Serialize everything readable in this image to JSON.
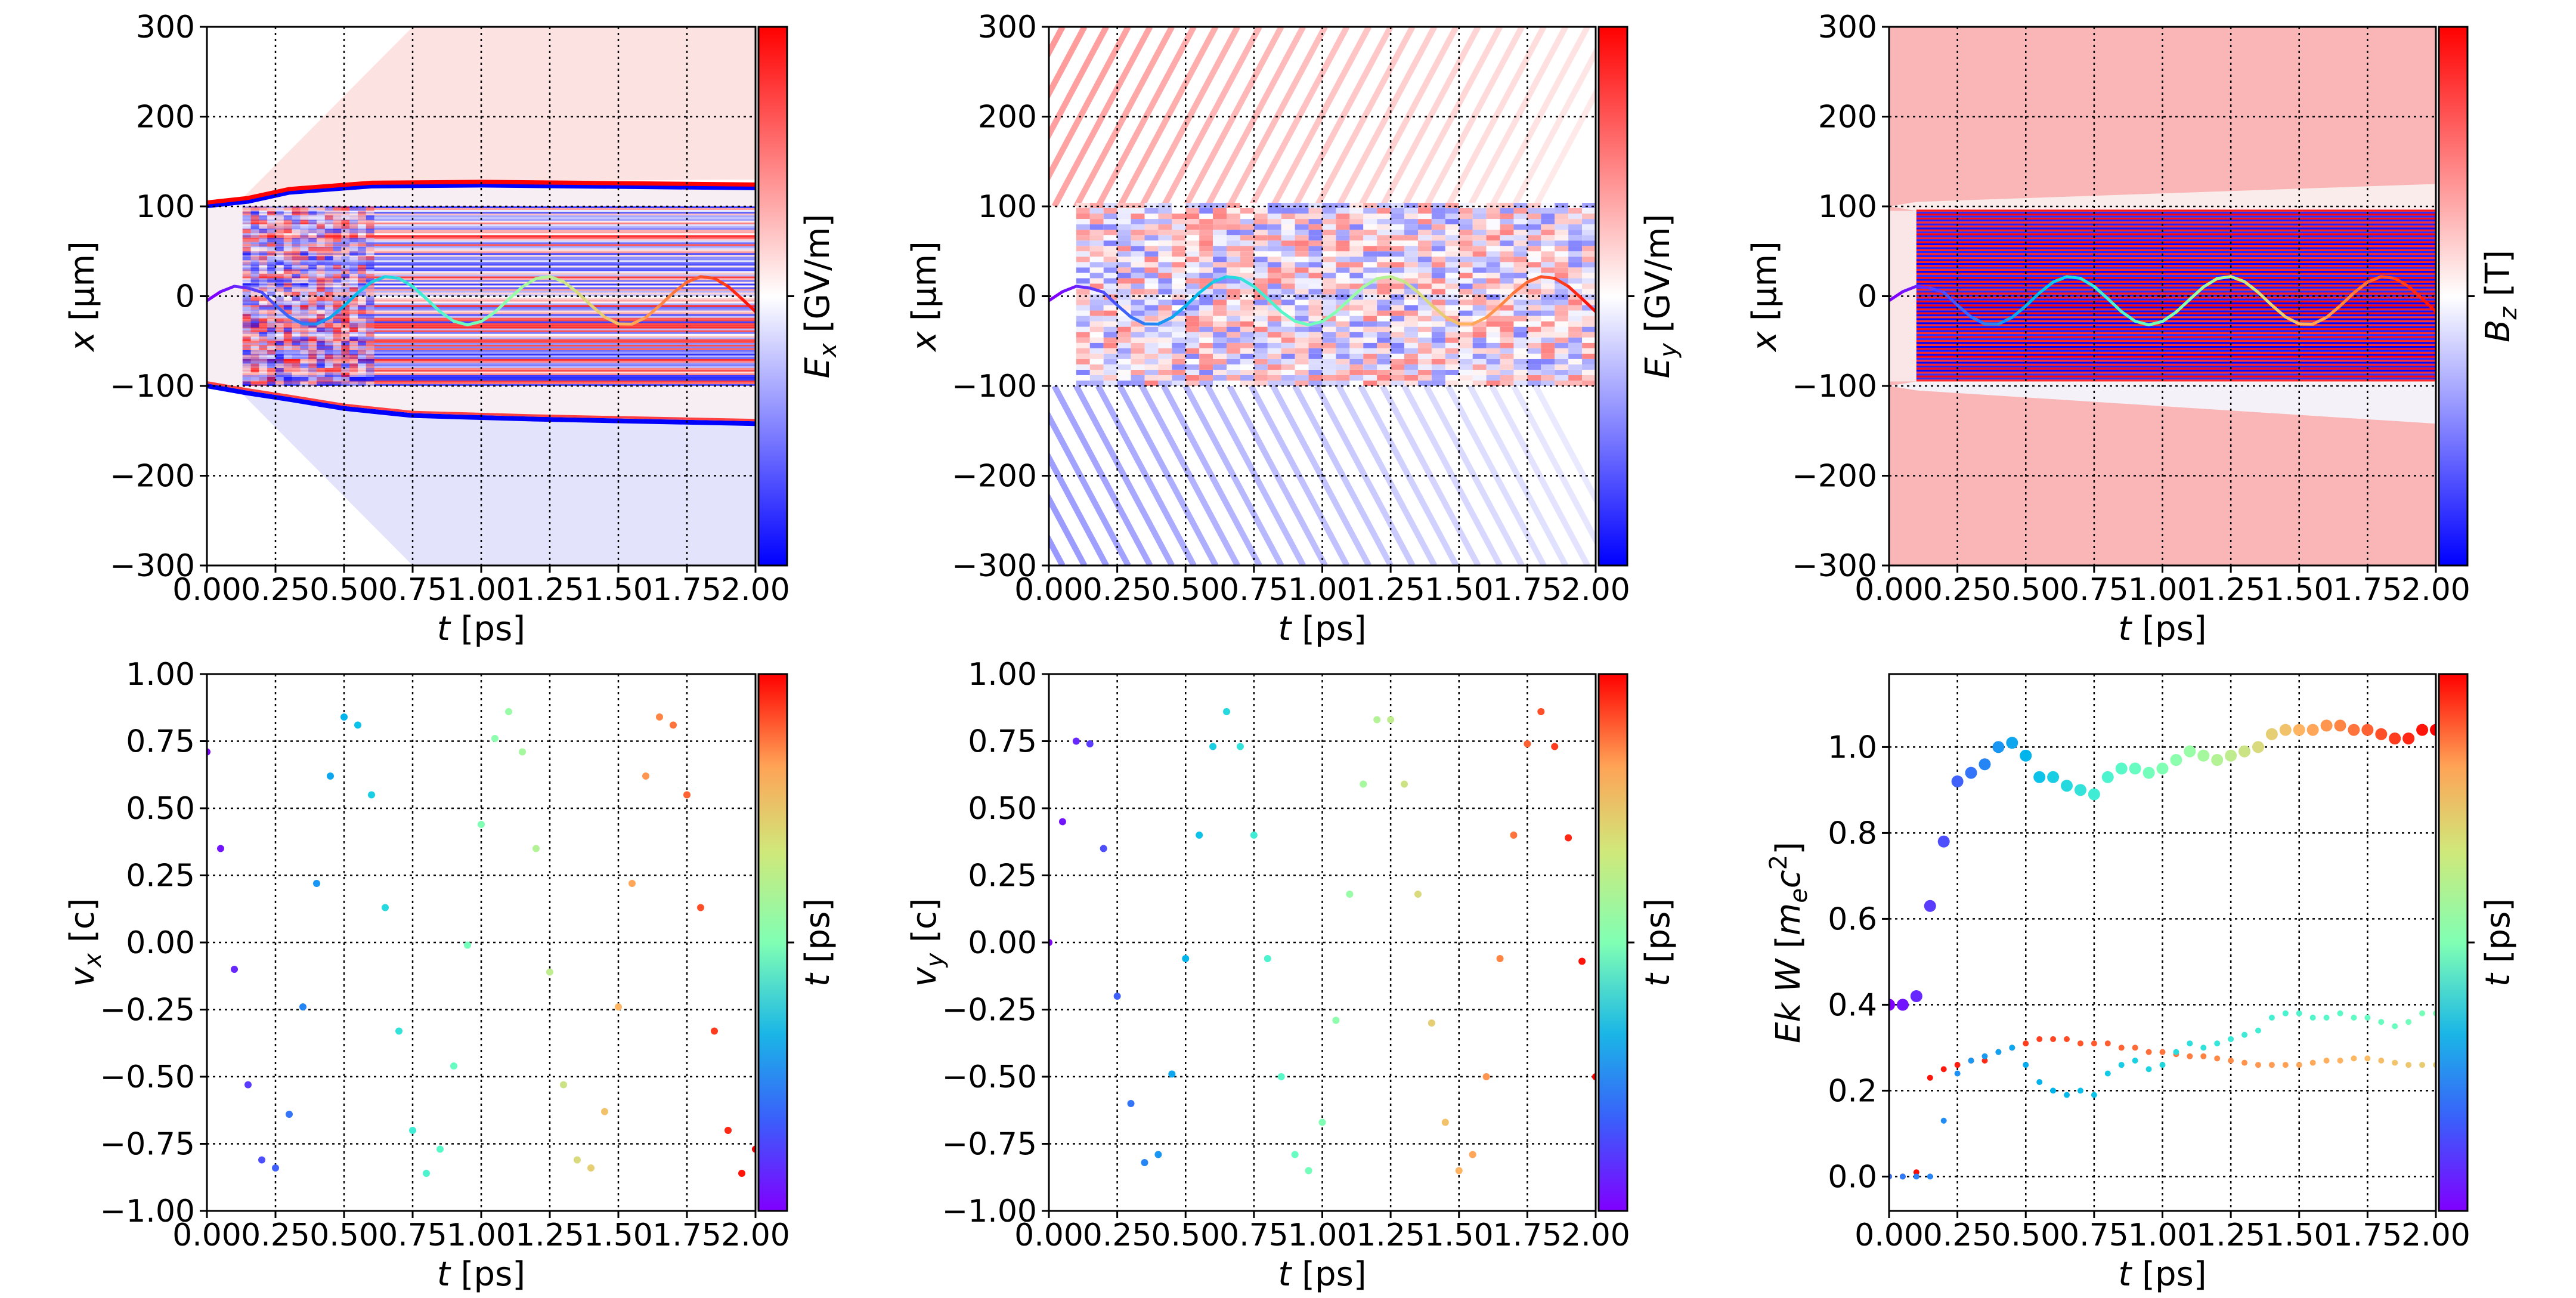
{
  "chart_data": [
    {
      "type": "heatmap",
      "xlabel": {
        "var": "t",
        "unit": "[ps]"
      },
      "ylabel": {
        "var": "x",
        "unit": "[μm]"
      },
      "xlim": [
        0,
        2
      ],
      "ylim": [
        -300,
        300
      ],
      "xticks": [
        0,
        0.25,
        0.5,
        0.75,
        1,
        1.25,
        1.5,
        1.75,
        2
      ],
      "xtick_labels": [
        "0.00",
        "0.25",
        "0.50",
        "0.75",
        "1.00",
        "1.25",
        "1.50",
        "1.75",
        "2.00"
      ],
      "yticks": [
        300,
        200,
        100,
        0,
        -100,
        -200,
        -300
      ],
      "ytick_labels": [
        "300",
        "200",
        "100",
        "0",
        "−100",
        "−200",
        "−300"
      ],
      "grid": true,
      "colorbar": {
        "base": "E",
        "sub": "x",
        "unit": "[GV/m]",
        "colormap": "bwr",
        "low": "#0000ff",
        "mid": "#ffffff",
        "high": "#ff0000"
      },
      "trajectory": {
        "colormap": "rainbow",
        "t": [
          0,
          0.05,
          0.1,
          0.15,
          0.2,
          0.25,
          0.3,
          0.35,
          0.4,
          0.45,
          0.5,
          0.55,
          0.6,
          0.65,
          0.7,
          0.75,
          0.8,
          0.85,
          0.9,
          0.95,
          1,
          1.05,
          1.1,
          1.15,
          1.2,
          1.25,
          1.3,
          1.35,
          1.4,
          1.45,
          1.5,
          1.55,
          1.6,
          1.65,
          1.7,
          1.75,
          1.8,
          1.85,
          1.9,
          1.95,
          2
        ],
        "x": [
          -5,
          5,
          11,
          9,
          4.4,
          -10.1,
          -23.2,
          -30.9,
          -31.1,
          -23.7,
          -10.9,
          3.7,
          15.7,
          21.7,
          19.9,
          10.9,
          -2.8,
          -17.2,
          -27.9,
          -32,
          -28.2,
          -17.7,
          -3.5,
          10.3,
          19.6,
          21.8,
          16.2,
          4.4,
          -10.1,
          -23.2,
          -30.9,
          -31.1,
          -23.7,
          -10.8,
          3.7,
          15.7,
          21.7,
          19.9,
          10.9,
          -2.8,
          -17.2
        ]
      }
    },
    {
      "type": "heatmap",
      "xlabel": {
        "var": "t",
        "unit": "[ps]"
      },
      "ylabel": {
        "var": "x",
        "unit": "[μm]"
      },
      "xlim": [
        0,
        2
      ],
      "ylim": [
        -300,
        300
      ],
      "xticks": [
        0,
        0.25,
        0.5,
        0.75,
        1,
        1.25,
        1.5,
        1.75,
        2
      ],
      "xtick_labels": [
        "0.00",
        "0.25",
        "0.50",
        "0.75",
        "1.00",
        "1.25",
        "1.50",
        "1.75",
        "2.00"
      ],
      "yticks": [
        300,
        200,
        100,
        0,
        -100,
        -200,
        -300
      ],
      "ytick_labels": [
        "300",
        "200",
        "100",
        "0",
        "−100",
        "−200",
        "−300"
      ],
      "grid": true,
      "colorbar": {
        "base": "E",
        "sub": "y",
        "unit": "[GV/m]",
        "colormap": "bwr",
        "low": "#0000ff",
        "mid": "#ffffff",
        "high": "#ff0000"
      },
      "trajectory": {
        "colormap": "rainbow",
        "t": [
          0,
          0.05,
          0.1,
          0.15,
          0.2,
          0.25,
          0.3,
          0.35,
          0.4,
          0.45,
          0.5,
          0.55,
          0.6,
          0.65,
          0.7,
          0.75,
          0.8,
          0.85,
          0.9,
          0.95,
          1,
          1.05,
          1.1,
          1.15,
          1.2,
          1.25,
          1.3,
          1.35,
          1.4,
          1.45,
          1.5,
          1.55,
          1.6,
          1.65,
          1.7,
          1.75,
          1.8,
          1.85,
          1.9,
          1.95,
          2
        ],
        "x": [
          -5,
          5,
          11,
          9,
          4.4,
          -10.1,
          -23.2,
          -30.9,
          -31.1,
          -23.7,
          -10.9,
          3.7,
          15.7,
          21.7,
          19.9,
          10.9,
          -2.8,
          -17.2,
          -27.9,
          -32,
          -28.2,
          -17.7,
          -3.5,
          10.3,
          19.6,
          21.8,
          16.2,
          4.4,
          -10.1,
          -23.2,
          -30.9,
          -31.1,
          -23.7,
          -10.8,
          3.7,
          15.7,
          21.7,
          19.9,
          10.9,
          -2.8,
          -17.2
        ]
      }
    },
    {
      "type": "heatmap",
      "xlabel": {
        "var": "t",
        "unit": "[ps]"
      },
      "ylabel": {
        "var": "x",
        "unit": "[μm]"
      },
      "xlim": [
        0,
        2
      ],
      "ylim": [
        -300,
        300
      ],
      "xticks": [
        0,
        0.25,
        0.5,
        0.75,
        1,
        1.25,
        1.5,
        1.75,
        2
      ],
      "xtick_labels": [
        "0.00",
        "0.25",
        "0.50",
        "0.75",
        "1.00",
        "1.25",
        "1.50",
        "1.75",
        "2.00"
      ],
      "yticks": [
        300,
        200,
        100,
        0,
        -100,
        -200,
        -300
      ],
      "ytick_labels": [
        "300",
        "200",
        "100",
        "0",
        "−100",
        "−200",
        "−300"
      ],
      "grid": true,
      "colorbar": {
        "base": "B",
        "sub": "z",
        "unit": "[T]",
        "colormap": "bwr",
        "low": "#0000ff",
        "mid": "#ffffff",
        "high": "#ff0000"
      },
      "trajectory": {
        "colormap": "rainbow",
        "t": [
          0,
          0.05,
          0.1,
          0.15,
          0.2,
          0.25,
          0.3,
          0.35,
          0.4,
          0.45,
          0.5,
          0.55,
          0.6,
          0.65,
          0.7,
          0.75,
          0.8,
          0.85,
          0.9,
          0.95,
          1,
          1.05,
          1.1,
          1.15,
          1.2,
          1.25,
          1.3,
          1.35,
          1.4,
          1.45,
          1.5,
          1.55,
          1.6,
          1.65,
          1.7,
          1.75,
          1.8,
          1.85,
          1.9,
          1.95,
          2
        ],
        "x": [
          -5,
          5,
          11,
          9,
          4.4,
          -10.1,
          -23.2,
          -30.9,
          -31.1,
          -23.7,
          -10.9,
          3.7,
          15.7,
          21.7,
          19.9,
          10.9,
          -2.8,
          -17.2,
          -27.9,
          -32,
          -28.2,
          -17.7,
          -3.5,
          10.3,
          19.6,
          21.8,
          16.2,
          4.4,
          -10.1,
          -23.2,
          -30.9,
          -31.1,
          -23.7,
          -10.8,
          3.7,
          15.7,
          21.7,
          19.9,
          10.9,
          -2.8,
          -17.2
        ]
      }
    },
    {
      "type": "scatter",
      "xlabel": {
        "var": "t",
        "unit": "[ps]"
      },
      "ylabel": {
        "var": "v",
        "sub": "x",
        "unit": "[c]"
      },
      "xlim": [
        0,
        2
      ],
      "ylim": [
        -1,
        1
      ],
      "xticks": [
        0,
        0.25,
        0.5,
        0.75,
        1,
        1.25,
        1.5,
        1.75,
        2
      ],
      "xtick_labels": [
        "0.00",
        "0.25",
        "0.50",
        "0.75",
        "1.00",
        "1.25",
        "1.50",
        "1.75",
        "2.00"
      ],
      "yticks": [
        1,
        0.75,
        0.5,
        0.25,
        0,
        -0.25,
        -0.5,
        -0.75,
        -1
      ],
      "ytick_labels": [
        "1.00",
        "0.75",
        "0.50",
        "0.25",
        "0.00",
        "−0.25",
        "−0.50",
        "−0.75",
        "−1.00"
      ],
      "grid": true,
      "colorbar": {
        "base": "t",
        "sub": "",
        "unit": "[ps]",
        "colormap": "rainbow"
      },
      "series": [
        {
          "colormap": "rainbow",
          "t": [
            0,
            0.05,
            0.1,
            0.15,
            0.2,
            0.25,
            0.3,
            0.35,
            0.4,
            0.45,
            0.5,
            0.55,
            0.6,
            0.65,
            0.7,
            0.75,
            0.8,
            0.85,
            0.9,
            0.95,
            1,
            1.05,
            1.1,
            1.15,
            1.2,
            1.25,
            1.3,
            1.35,
            1.4,
            1.45,
            1.5,
            1.55,
            1.6,
            1.65,
            1.7,
            1.75,
            1.8,
            1.85,
            1.9,
            1.95,
            2
          ],
          "y": [
            0.71,
            0.35,
            -0.1,
            -0.53,
            -0.81,
            -0.84,
            -0.64,
            -0.24,
            0.22,
            0.62,
            0.84,
            0.81,
            0.55,
            0.13,
            -0.33,
            -0.7,
            -0.86,
            -0.77,
            -0.46,
            -0.01,
            0.44,
            0.76,
            0.86,
            0.71,
            0.35,
            -0.11,
            -0.53,
            -0.81,
            -0.84,
            -0.63,
            -0.24,
            0.22,
            0.62,
            0.84,
            0.81,
            0.55,
            0.13,
            -0.33,
            -0.7,
            -0.86,
            -0.77
          ]
        }
      ]
    },
    {
      "type": "scatter",
      "xlabel": {
        "var": "t",
        "unit": "[ps]"
      },
      "ylabel": {
        "var": "v",
        "sub": "y",
        "unit": "[c]"
      },
      "xlim": [
        0,
        2
      ],
      "ylim": [
        -1,
        1
      ],
      "xticks": [
        0,
        0.25,
        0.5,
        0.75,
        1,
        1.25,
        1.5,
        1.75,
        2
      ],
      "xtick_labels": [
        "0.00",
        "0.25",
        "0.50",
        "0.75",
        "1.00",
        "1.25",
        "1.50",
        "1.75",
        "2.00"
      ],
      "yticks": [
        1,
        0.75,
        0.5,
        0.25,
        0,
        -0.25,
        -0.5,
        -0.75,
        -1
      ],
      "ytick_labels": [
        "1.00",
        "0.75",
        "0.50",
        "0.25",
        "0.00",
        "−0.25",
        "−0.50",
        "−0.75",
        "−1.00"
      ],
      "grid": true,
      "colorbar": {
        "base": "t",
        "sub": "",
        "unit": "[ps]",
        "colormap": "rainbow"
      },
      "series": [
        {
          "colormap": "rainbow",
          "t": [
            0,
            0.05,
            0.1,
            0.15,
            0.2,
            0.25,
            0.3,
            0.35,
            0.4,
            0.45,
            0.5,
            0.55,
            0.6,
            0.65,
            0.7,
            0.75,
            0.8,
            0.85,
            0.9,
            0.95,
            1,
            1.05,
            1.1,
            1.15,
            1.2,
            1.25,
            1.3,
            1.35,
            1.4,
            1.45,
            1.5,
            1.55,
            1.6,
            1.65,
            1.7,
            1.75,
            1.8,
            1.85,
            1.9,
            1.95,
            2
          ],
          "y": [
            0.0,
            0.45,
            0.75,
            0.74,
            0.35,
            -0.2,
            -0.6,
            -0.82,
            -0.79,
            -0.49,
            -0.06,
            0.4,
            0.73,
            0.86,
            0.73,
            0.4,
            -0.06,
            -0.5,
            -0.79,
            -0.85,
            -0.67,
            -0.29,
            0.18,
            0.59,
            0.83,
            0.83,
            0.59,
            0.18,
            -0.3,
            -0.67,
            -0.85,
            -0.79,
            -0.5,
            -0.06,
            0.4,
            0.74,
            0.86,
            0.73,
            0.39,
            -0.07,
            -0.5
          ]
        }
      ]
    },
    {
      "type": "scatter",
      "xlabel": {
        "var": "t",
        "unit": "[ps]"
      },
      "ylabel": {
        "var": "Ek W",
        "sub": "",
        "unit": "[m_e c^2]"
      },
      "xlim": [
        0,
        2
      ],
      "ylim": [
        -0.08,
        1.17
      ],
      "xticks": [
        0,
        0.25,
        0.5,
        0.75,
        1,
        1.25,
        1.5,
        1.75,
        2
      ],
      "xtick_labels": [
        "0.00",
        "0.25",
        "0.50",
        "0.75",
        "1.00",
        "1.25",
        "1.50",
        "1.75",
        "2.00"
      ],
      "yticks": [
        1.0,
        0.8,
        0.6,
        0.4,
        0.2,
        0.0
      ],
      "ytick_labels": [
        "1.0",
        "0.8",
        "0.6",
        "0.4",
        "0.2",
        "0.0"
      ],
      "grid": true,
      "colorbar": {
        "base": "t",
        "sub": "",
        "unit": "[ps]",
        "colormap": "rainbow"
      },
      "series": [
        {
          "colormap": "rainbow",
          "marker": "large",
          "t": [
            0,
            0.05,
            0.1,
            0.15,
            0.2,
            0.25,
            0.3,
            0.35,
            0.4,
            0.45,
            0.5,
            0.55,
            0.6,
            0.65,
            0.7,
            0.75,
            0.8,
            0.85,
            0.9,
            0.95,
            1,
            1.05,
            1.1,
            1.15,
            1.2,
            1.25,
            1.3,
            1.35,
            1.4,
            1.45,
            1.5,
            1.55,
            1.6,
            1.65,
            1.7,
            1.75,
            1.8,
            1.85,
            1.9,
            1.95,
            2
          ],
          "y": [
            0.4,
            0.4,
            0.42,
            0.63,
            0.78,
            0.92,
            0.94,
            0.96,
            1.0,
            1.01,
            0.98,
            0.93,
            0.93,
            0.91,
            0.9,
            0.89,
            0.93,
            0.95,
            0.95,
            0.94,
            0.95,
            0.97,
            0.99,
            0.98,
            0.97,
            0.98,
            0.99,
            1.0,
            1.03,
            1.04,
            1.04,
            1.04,
            1.05,
            1.05,
            1.04,
            1.04,
            1.03,
            1.02,
            1.02,
            1.04,
            1.04
          ]
        },
        {
          "colormap": "red-to-yellow",
          "marker": "small",
          "t": [
            0,
            0.05,
            0.1,
            0.15,
            0.2,
            0.25,
            0.3,
            0.35,
            0.4,
            0.45,
            0.5,
            0.55,
            0.6,
            0.65,
            0.7,
            0.75,
            0.8,
            0.85,
            0.9,
            0.95,
            1,
            1.05,
            1.1,
            1.15,
            1.2,
            1.25,
            1.3,
            1.35,
            1.4,
            1.45,
            1.5,
            1.55,
            1.6,
            1.65,
            1.7,
            1.75,
            1.8,
            1.85,
            1.9,
            1.95,
            2
          ],
          "y": [
            0,
            0,
            0.01,
            0.23,
            0.25,
            0.26,
            0.27,
            0.27,
            0.29,
            0.3,
            0.31,
            0.32,
            0.32,
            0.32,
            0.31,
            0.31,
            0.31,
            0.3,
            0.3,
            0.29,
            0.29,
            0.285,
            0.28,
            0.28,
            0.275,
            0.27,
            0.265,
            0.26,
            0.26,
            0.26,
            0.26,
            0.265,
            0.27,
            0.27,
            0.275,
            0.275,
            0.27,
            0.265,
            0.26,
            0.26,
            0.26
          ]
        },
        {
          "colormap": "blue-to-green",
          "marker": "small",
          "t": [
            0,
            0.05,
            0.1,
            0.15,
            0.2,
            0.25,
            0.3,
            0.35,
            0.4,
            0.45,
            0.5,
            0.55,
            0.6,
            0.65,
            0.7,
            0.75,
            0.8,
            0.85,
            0.9,
            0.95,
            1,
            1.05,
            1.1,
            1.15,
            1.2,
            1.25,
            1.3,
            1.35,
            1.4,
            1.45,
            1.5,
            1.55,
            1.6,
            1.65,
            1.7,
            1.75,
            1.8,
            1.85,
            1.9,
            1.95,
            2
          ],
          "y": [
            0,
            0,
            0,
            0,
            0.13,
            0.24,
            0.27,
            0.28,
            0.29,
            0.3,
            0.26,
            0.22,
            0.2,
            0.19,
            0.2,
            0.19,
            0.24,
            0.26,
            0.27,
            0.25,
            0.26,
            0.29,
            0.31,
            0.3,
            0.31,
            0.32,
            0.33,
            0.34,
            0.37,
            0.38,
            0.38,
            0.37,
            0.37,
            0.38,
            0.37,
            0.37,
            0.36,
            0.35,
            0.36,
            0.38,
            0.38
          ]
        }
      ]
    }
  ]
}
